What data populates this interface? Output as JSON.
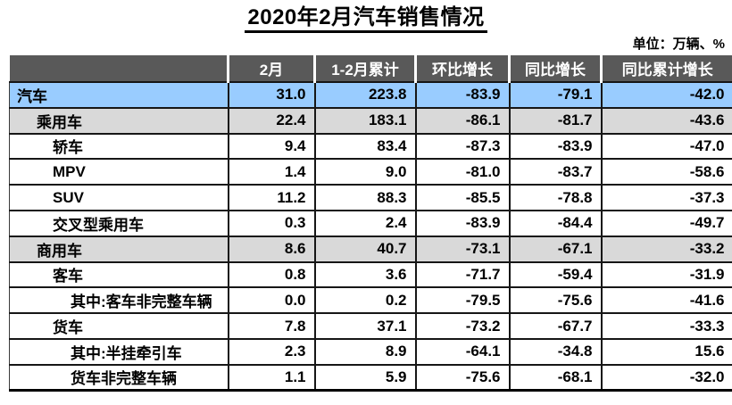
{
  "title": "2020年2月汽车销售情况",
  "unit_note": "单位：万辆、%",
  "colors": {
    "header_bg": "#595959",
    "header_text": "#FFFFFF",
    "total_row_blue": "#99CCFF",
    "subtotal_row_gray": "#D9D9D9",
    "detail_row_white": "#FFFFFF",
    "border": "#161616"
  },
  "chart_data": {
    "type": "table",
    "title": "2020年2月汽车销售情况",
    "unit": "万辆、%",
    "columns": [
      "",
      "2月",
      "1-2月累计",
      "环比增长",
      "同比增长",
      "同比累计增长"
    ],
    "rows": [
      {
        "label": "汽车",
        "indent": 0,
        "emphasis": "blue",
        "values": [
          31.0,
          223.8,
          -83.9,
          -79.1,
          -42.0
        ]
      },
      {
        "label": "乘用车",
        "indent": 1,
        "emphasis": "gray",
        "values": [
          22.4,
          183.1,
          -86.1,
          -81.7,
          -43.6
        ]
      },
      {
        "label": "轿车",
        "indent": 2,
        "emphasis": "white",
        "values": [
          9.4,
          83.4,
          -87.3,
          -83.9,
          -47.0
        ]
      },
      {
        "label": "MPV",
        "indent": 2,
        "emphasis": "white",
        "values": [
          1.4,
          9.0,
          -81.0,
          -83.7,
          -58.6
        ]
      },
      {
        "label": "SUV",
        "indent": 2,
        "emphasis": "white",
        "values": [
          11.2,
          88.3,
          -85.5,
          -78.8,
          -37.3
        ]
      },
      {
        "label": "交叉型乘用车",
        "indent": 2,
        "emphasis": "white",
        "values": [
          0.3,
          2.4,
          -83.9,
          -84.4,
          -49.7
        ]
      },
      {
        "label": "商用车",
        "indent": 1,
        "emphasis": "gray",
        "values": [
          8.6,
          40.7,
          -73.1,
          -67.1,
          -33.2
        ]
      },
      {
        "label": "客车",
        "indent": 2,
        "emphasis": "white",
        "values": [
          0.8,
          3.6,
          -71.7,
          -59.4,
          -31.9
        ]
      },
      {
        "label": "其中:客车非完整车辆",
        "indent": 3,
        "emphasis": "white",
        "values": [
          0.0,
          0.2,
          -79.5,
          -75.6,
          -41.6
        ]
      },
      {
        "label": "货车",
        "indent": 2,
        "emphasis": "white",
        "values": [
          7.8,
          37.1,
          -73.2,
          -67.7,
          -33.3
        ]
      },
      {
        "label": "其中:半挂牵引车",
        "indent": 3,
        "emphasis": "white",
        "values": [
          2.3,
          8.9,
          -64.1,
          -34.8,
          15.6
        ]
      },
      {
        "label": "货车非完整车辆",
        "indent": 3,
        "emphasis": "white",
        "values": [
          1.1,
          5.9,
          -75.6,
          -68.1,
          -32.0
        ]
      }
    ]
  }
}
